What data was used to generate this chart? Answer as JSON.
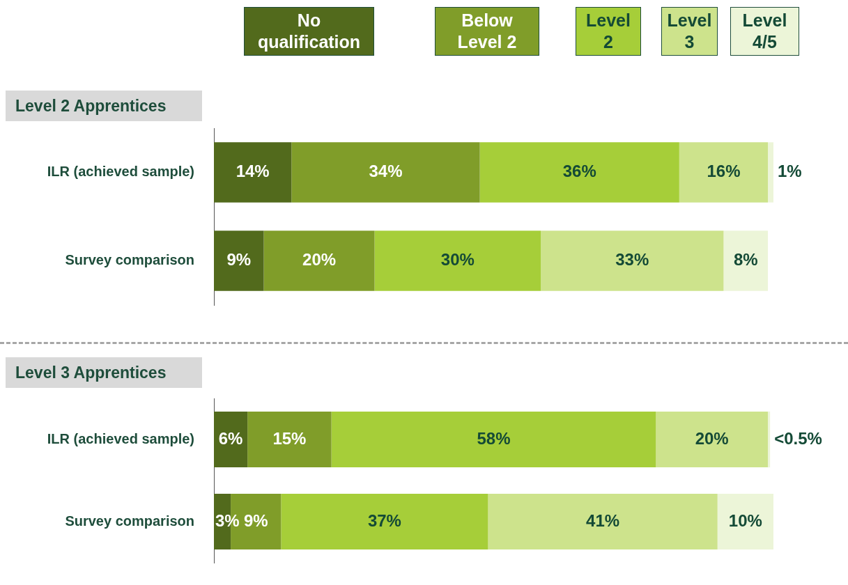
{
  "chart_data": [
    {
      "type": "bar",
      "title": "Level 2 Apprentices",
      "orientation": "horizontal",
      "stacked": true,
      "legend": "top",
      "categories": [
        "ILR (achieved sample)",
        "Survey comparison"
      ],
      "series": [
        {
          "name": "No qualification",
          "color": "#526a1c",
          "values": [
            14,
            9
          ],
          "value_labels": [
            "14%",
            "9%"
          ]
        },
        {
          "name": "Below Level 2",
          "color": "#809d29",
          "values": [
            34,
            20
          ],
          "value_labels": [
            "34%",
            "20%"
          ]
        },
        {
          "name": "Level 2",
          "color": "#a6ce39",
          "values": [
            36,
            30
          ],
          "value_labels": [
            "36%",
            "30%"
          ]
        },
        {
          "name": "Level 3",
          "color": "#cde38c",
          "values": [
            16,
            33
          ],
          "value_labels": [
            "16%",
            "33%"
          ]
        },
        {
          "name": "Level 4/5",
          "color": "#ecf5d8",
          "values": [
            1,
            8
          ],
          "value_labels": [
            "1%",
            "8%"
          ]
        }
      ]
    },
    {
      "type": "bar",
      "title": "Level 3 Apprentices",
      "orientation": "horizontal",
      "stacked": true,
      "categories": [
        "ILR (achieved sample)",
        "Survey comparison"
      ],
      "series": [
        {
          "color": "#526a1c",
          "values": [
            6,
            3
          ],
          "value_labels": [
            "6%",
            "3%"
          ]
        },
        {
          "color": "#809d29",
          "values": [
            15,
            9
          ],
          "value_labels": [
            "15%",
            "9%"
          ]
        },
        {
          "color": "#a6ce39",
          "values": [
            58,
            37
          ],
          "value_labels": [
            "58%",
            "37%"
          ]
        },
        {
          "color": "#cde38c",
          "values": [
            20,
            41
          ],
          "value_labels": [
            "20%",
            "41%"
          ]
        },
        {
          "color": "#ecf5d8",
          "values": [
            0.4,
            10
          ],
          "value_labels": [
            "<0.5%",
            "10%"
          ]
        }
      ]
    }
  ]
}
